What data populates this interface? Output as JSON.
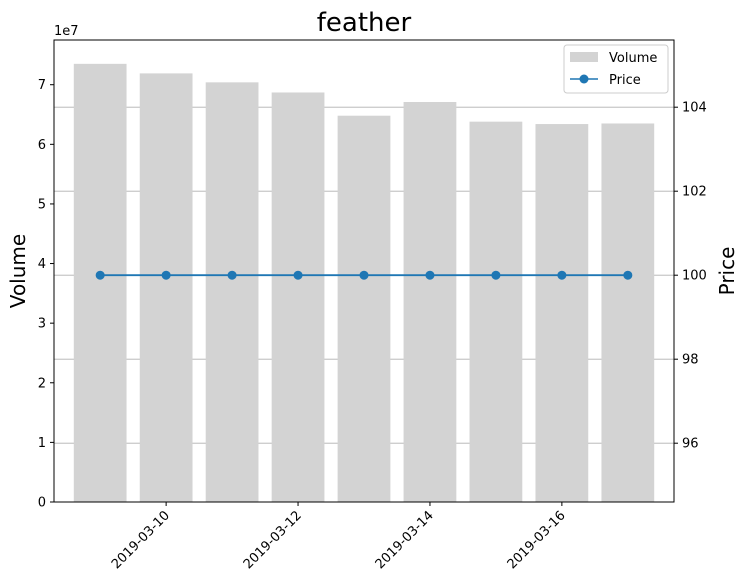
{
  "chart_data": {
    "type": "bar",
    "title": "feather",
    "ylabel": "Volume",
    "y2label": "Price",
    "volume_exponent_label": "1e7",
    "dates": [
      "2019-03-09",
      "2019-03-10",
      "2019-03-11",
      "2019-03-12",
      "2019-03-13",
      "2019-03-14",
      "2019-03-15",
      "2019-03-16",
      "2019-03-17"
    ],
    "xtick_labels": [
      "2019-03-10",
      "2019-03-12",
      "2019-03-14",
      "2019-03-16"
    ],
    "series": [
      {
        "name": "Volume",
        "type": "bar",
        "axis": "left",
        "values": [
          73500000,
          71900000,
          70400000,
          68700000,
          64800000,
          67100000,
          63800000,
          63400000,
          63500000
        ]
      },
      {
        "name": "Price",
        "type": "line",
        "axis": "right",
        "values": [
          100,
          100,
          100,
          100,
          100,
          100,
          100,
          100,
          100
        ]
      }
    ],
    "ylim": [
      0,
      77500000
    ],
    "yticks": [
      0,
      1,
      2,
      3,
      4,
      5,
      6,
      7
    ],
    "y2lim": [
      94.6,
      105.6
    ],
    "y2ticks": [
      96,
      98,
      100,
      102,
      104
    ],
    "grid": "horizontal (right axis)",
    "legend_position": "top-right",
    "colors": {
      "bar": "#d3d3d3",
      "line": "#1f77b4",
      "grid": "#b0b0b0"
    }
  }
}
